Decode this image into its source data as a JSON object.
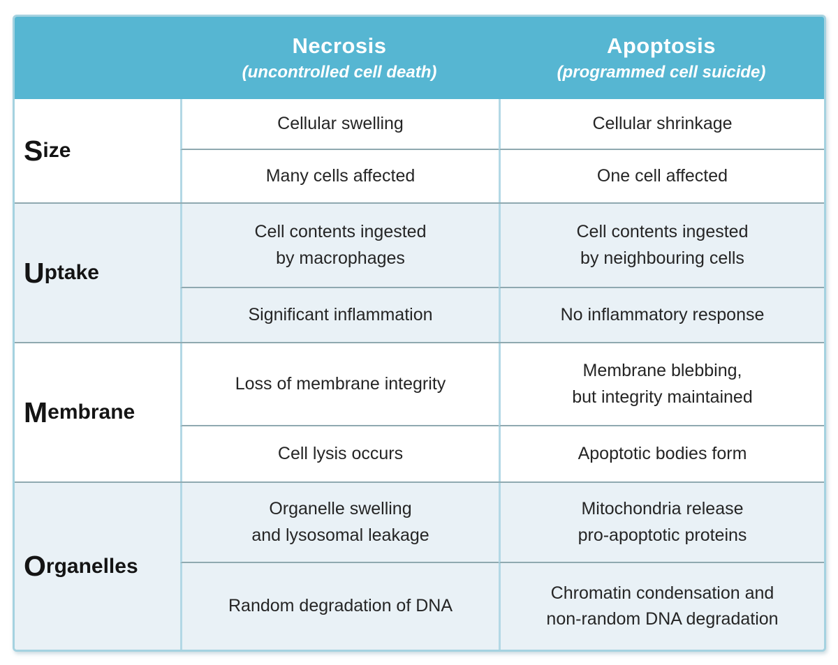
{
  "header": {
    "necrosis_title": "Necrosis",
    "necrosis_subtitle": "(uncontrolled cell death)",
    "apoptosis_title": "Apoptosis",
    "apoptosis_subtitle": "(programmed cell suicide)"
  },
  "sections": [
    {
      "initial": "S",
      "rest": "ize",
      "rows": [
        {
          "necrosis": "Cellular swelling",
          "apoptosis": "Cellular shrinkage"
        },
        {
          "necrosis": "Many cells affected",
          "apoptosis": "One cell affected"
        }
      ]
    },
    {
      "initial": "U",
      "rest": "ptake",
      "rows": [
        {
          "necrosis": "Cell contents ingested\nby macrophages",
          "apoptosis": "Cell contents ingested\nby neighbouring cells"
        },
        {
          "necrosis": "Significant inflammation",
          "apoptosis": "No inflammatory response"
        }
      ]
    },
    {
      "initial": "M",
      "rest": "embrane",
      "rows": [
        {
          "necrosis": "Loss of membrane integrity",
          "apoptosis": "Membrane blebbing,\nbut integrity maintained"
        },
        {
          "necrosis": "Cell lysis occurs",
          "apoptosis": "Apoptotic bodies form"
        }
      ]
    },
    {
      "initial": "O",
      "rest": "rganelles",
      "rows": [
        {
          "necrosis": "Organelle swelling\nand lysosomal leakage",
          "apoptosis": "Mitochondria release\npro-apoptotic proteins"
        },
        {
          "necrosis": "Random degradation of DNA",
          "apoptosis": "Chromatin condensation and\nnon-random DNA degradation"
        }
      ]
    }
  ],
  "colors": {
    "header_bg": "#56b6d2",
    "alt_row_bg": "#e9f1f6",
    "white_row_bg": "#ffffff",
    "outer_border": "#a5d2e0",
    "vertical_divider": "#b3d8e5",
    "horizontal_divider": "#8fa9b0",
    "header_text": "#ffffff",
    "body_text": "#252525"
  },
  "chart_data": {
    "type": "table",
    "columns": [
      "",
      "Necrosis (uncontrolled cell death)",
      "Apoptosis (programmed cell suicide)"
    ],
    "rows": [
      [
        "Size",
        "Cellular swelling",
        "Cellular shrinkage"
      ],
      [
        "Size",
        "Many cells affected",
        "One cell affected"
      ],
      [
        "Uptake",
        "Cell contents ingested by macrophages",
        "Cell contents ingested by neighbouring cells"
      ],
      [
        "Uptake",
        "Significant inflammation",
        "No inflammatory response"
      ],
      [
        "Membrane",
        "Loss of membrane integrity",
        "Membrane blebbing, but integrity maintained"
      ],
      [
        "Membrane",
        "Cell lysis occurs",
        "Apoptotic bodies form"
      ],
      [
        "Organelles",
        "Organelle swelling and lysosomal leakage",
        "Mitochondria release pro-apoptotic proteins"
      ],
      [
        "Organelles",
        "Random degradation of DNA",
        "Chromatin condensation and non-random DNA degradation"
      ]
    ],
    "layout_hints": {
      "row_group_backgrounds": [
        "white",
        "light-blue",
        "white",
        "light-blue"
      ],
      "label_column_initial_letter_enlarged": true,
      "header_style": "teal band, white bold text with italic subtitle"
    }
  }
}
